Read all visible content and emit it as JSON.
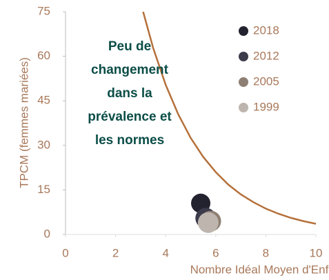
{
  "chart_data": {
    "type": "scatter",
    "xlabel": "Nombre Idéal Moyen d'Enfants",
    "ylabel": "TPCM (femmes mariées)",
    "annotation": [
      "Peu de",
      "changement",
      "dans la",
      "prévalence et",
      "les normes"
    ],
    "xlim": [
      0,
      10
    ],
    "xticks": [
      0,
      2,
      4,
      6,
      8,
      10
    ],
    "ylim": [
      0,
      75
    ],
    "yticks": [
      0,
      15,
      30,
      45,
      60,
      75
    ],
    "series": [
      {
        "name": "2018",
        "color": "#23222f",
        "x": [
          5.4
        ],
        "values": [
          10.5
        ]
      },
      {
        "name": "2012",
        "color": "#3b3b4b",
        "x": [
          5.6
        ],
        "values": [
          5.5
        ]
      },
      {
        "name": "2005",
        "color": "#8e7f74",
        "x": [
          5.8
        ],
        "values": [
          4.5
        ]
      },
      {
        "name": "1999",
        "color": "#bdb5ae",
        "x": [
          5.7
        ],
        "values": [
          4
        ]
      }
    ],
    "curve": {
      "color": "#b5703a",
      "x": [
        3.1,
        3.5,
        4,
        4.5,
        5,
        5.5,
        6,
        6.5,
        7,
        7.5,
        8,
        8.5,
        9,
        9.5,
        10
      ],
      "values": [
        75,
        62.8,
        50.4,
        40.5,
        32.5,
        26.1,
        21,
        16.8,
        13.5,
        10.9,
        8.7,
        7,
        5.6,
        4.5,
        3.6
      ]
    }
  }
}
